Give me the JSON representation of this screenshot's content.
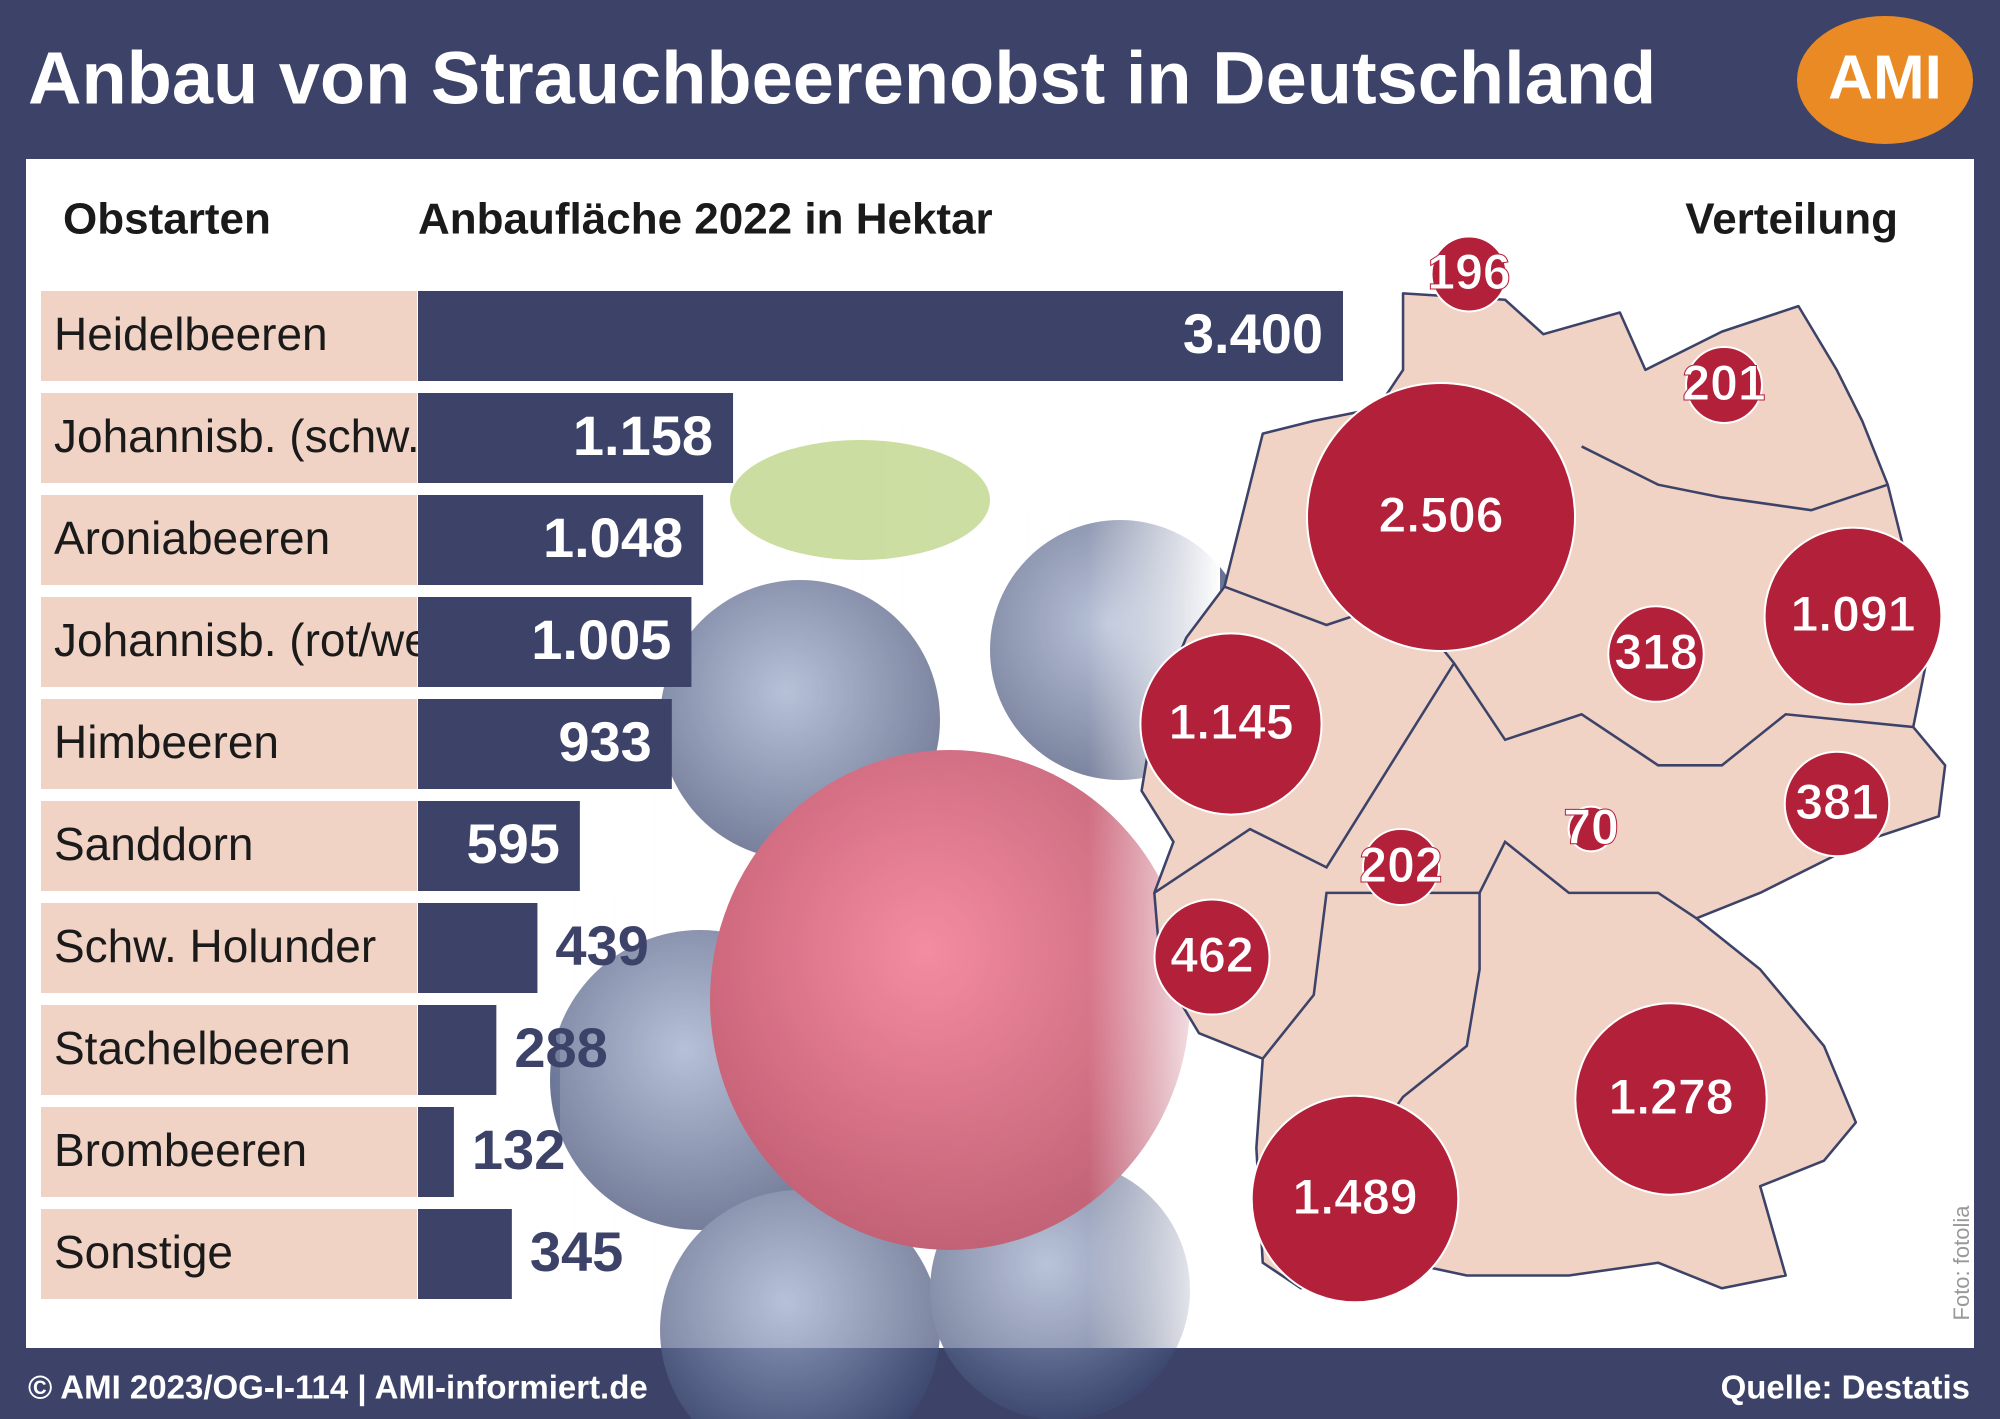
{
  "title": "Anbau von Strauchbeerenobst in Deutschland",
  "logo": "AMI",
  "chart_data": [
    {
      "type": "bar",
      "category_header": "Obstarten",
      "value_header": "Anbaufläche 2022 in Hektar",
      "categories": [
        "Heidelbeeren",
        "Johannisb. (schw.)",
        "Aroniabeeren",
        "Johannisb. (rot/weiß)",
        "Himbeeren",
        "Sanddorn",
        "Schw. Holunder",
        "Stachelbeeren",
        "Brombeeren",
        "Sonstige"
      ],
      "values": [
        3400,
        1158,
        1048,
        1005,
        933,
        595,
        439,
        288,
        132,
        345
      ],
      "value_labels": [
        "3.400",
        "1.158",
        "1.048",
        "1.005",
        "933",
        "595",
        "439",
        "288",
        "132",
        "345"
      ],
      "color": "#3d4368",
      "label_color": "#f1d3c5"
    },
    {
      "type": "bubble-map",
      "title": "Verteilung",
      "values": [
        196,
        201,
        2506,
        318,
        1091,
        1145,
        381,
        70,
        202,
        462,
        1278,
        1489
      ],
      "value_labels": [
        "196",
        "201",
        "2.506",
        "318",
        "1.091",
        "1.145",
        "381",
        "70",
        "202",
        "462",
        "1.278",
        "1.489"
      ],
      "color": "#b3203a",
      "map_color": "#f1d3c5"
    }
  ],
  "footer": "© AMI 2023/OG-I-114 | AMI-informiert.de",
  "source": "Quelle: Destatis",
  "credit": "Foto: fotolia"
}
